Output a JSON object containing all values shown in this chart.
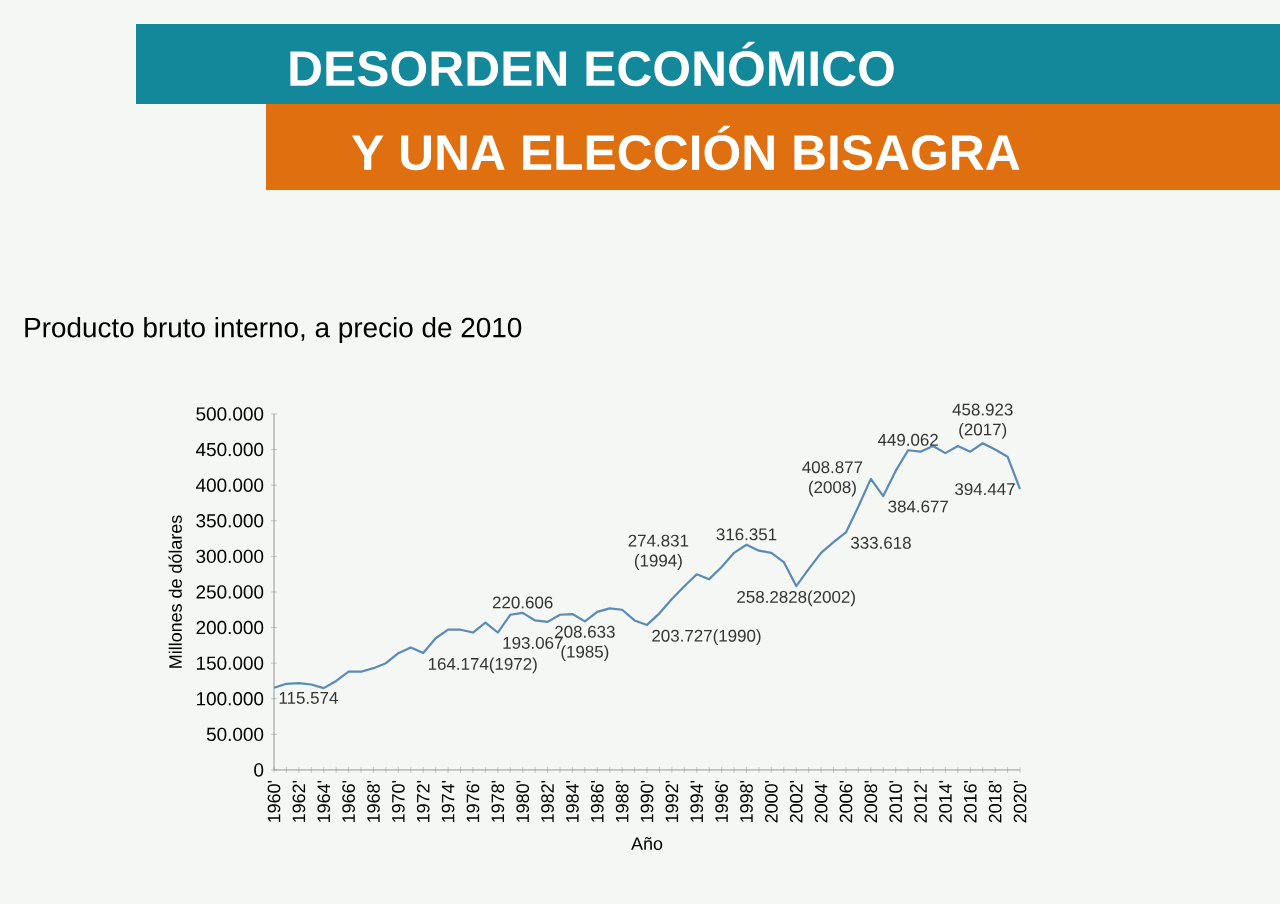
{
  "chart_data": {
    "type": "line",
    "title": "DESORDEN ECONÓMICO",
    "subtitle": "Y UNA ELECCIÓN BISAGRA",
    "xlabel": "Año",
    "ylabel": "Millones de dólares",
    "color": "#5a8ab5",
    "x": [
      1960,
      1961,
      1962,
      1963,
      1964,
      1965,
      1966,
      1967,
      1968,
      1969,
      1970,
      1971,
      1972,
      1973,
      1974,
      1975,
      1976,
      1977,
      1978,
      1979,
      1980,
      1981,
      1982,
      1983,
      1984,
      1985,
      1986,
      1987,
      1988,
      1989,
      1990,
      1991,
      1992,
      1993,
      1994,
      1995,
      1996,
      1997,
      1998,
      1999,
      2000,
      2001,
      2002,
      2003,
      2004,
      2005,
      2006,
      2007,
      2008,
      2009,
      2010,
      2011,
      2012,
      2013,
      2014,
      2015,
      2016,
      2017,
      2018,
      2019,
      2020
    ],
    "values": [
      115574,
      121000,
      122000,
      120000,
      115000,
      125000,
      138000,
      138000,
      143000,
      150000,
      164000,
      172000,
      164174,
      185000,
      197000,
      197000,
      193000,
      207000,
      193067,
      218000,
      220606,
      210000,
      208000,
      218000,
      219000,
      208633,
      222000,
      227000,
      225000,
      210000,
      203727,
      220000,
      240000,
      258000,
      274831,
      268000,
      285000,
      305000,
      316351,
      308000,
      305000,
      292000,
      258283,
      282000,
      305000,
      320000,
      333618,
      370000,
      408877,
      384677,
      420000,
      449062,
      447000,
      455000,
      445000,
      455000,
      447000,
      458923,
      450000,
      440000,
      394447
    ],
    "xlim": [
      1960,
      2020
    ],
    "ylim": [
      0,
      500000
    ],
    "xticks": [
      {
        "value": 1960,
        "label": "1960'"
      },
      {
        "value": 1961,
        "label": null
      },
      {
        "value": 1962,
        "label": "1962'"
      },
      {
        "value": 1963,
        "label": null
      },
      {
        "value": 1964,
        "label": "1964'"
      },
      {
        "value": 1965,
        "label": null
      },
      {
        "value": 1966,
        "label": "1966'"
      },
      {
        "value": 1967,
        "label": null
      },
      {
        "value": 1968,
        "label": "1968'"
      },
      {
        "value": 1969,
        "label": null
      },
      {
        "value": 1970,
        "label": "1970'"
      },
      {
        "value": 1971,
        "label": null
      },
      {
        "value": 1972,
        "label": "1972'"
      },
      {
        "value": 1973,
        "label": null
      },
      {
        "value": 1974,
        "label": "1974'"
      },
      {
        "value": 1975,
        "label": null
      },
      {
        "value": 1976,
        "label": "1976'"
      },
      {
        "value": 1977,
        "label": null
      },
      {
        "value": 1978,
        "label": "1978'"
      },
      {
        "value": 1979,
        "label": null
      },
      {
        "value": 1980,
        "label": "1980'"
      },
      {
        "value": 1981,
        "label": null
      },
      {
        "value": 1982,
        "label": "1982'"
      },
      {
        "value": 1983,
        "label": null
      },
      {
        "value": 1984,
        "label": "1984'"
      },
      {
        "value": 1985,
        "label": null
      },
      {
        "value": 1986,
        "label": "1986'"
      },
      {
        "value": 1987,
        "label": null
      },
      {
        "value": 1988,
        "label": "1988'"
      },
      {
        "value": 1989,
        "label": null
      },
      {
        "value": 1990,
        "label": "1990'"
      },
      {
        "value": 1991,
        "label": null
      },
      {
        "value": 1992,
        "label": "1992'"
      },
      {
        "value": 1993,
        "label": null
      },
      {
        "value": 1994,
        "label": "1994'"
      },
      {
        "value": 1995,
        "label": null
      },
      {
        "value": 1996,
        "label": "1996'"
      },
      {
        "value": 1997,
        "label": null
      },
      {
        "value": 1998,
        "label": "1998'"
      },
      {
        "value": 1999,
        "label": null
      },
      {
        "value": 2000,
        "label": "2000'"
      },
      {
        "value": 2001,
        "label": null
      },
      {
        "value": 2002,
        "label": "2002'"
      },
      {
        "value": 2003,
        "label": null
      },
      {
        "value": 2004,
        "label": "2004'"
      },
      {
        "value": 2005,
        "label": null
      },
      {
        "value": 2006,
        "label": "2006'"
      },
      {
        "value": 2007,
        "label": null
      },
      {
        "value": 2008,
        "label": "2008'"
      },
      {
        "value": 2009,
        "label": null
      },
      {
        "value": 2010,
        "label": "2010'"
      },
      {
        "value": 2011,
        "label": null
      },
      {
        "value": 2012,
        "label": "2012'"
      },
      {
        "value": 2013,
        "label": null
      },
      {
        "value": 2014,
        "label": "2014'"
      },
      {
        "value": 2015,
        "label": null
      },
      {
        "value": 2016,
        "label": "2016'"
      },
      {
        "value": 2017,
        "label": null
      },
      {
        "value": 2018,
        "label": "2018'"
      },
      {
        "value": 2019,
        "label": null
      },
      {
        "value": 2020,
        "label": "2020'"
      }
    ],
    "yticks": [
      0,
      {
        "value": 50000,
        "label": "50.000"
      },
      {
        "value": 100000,
        "label": "100.000"
      },
      {
        "value": 150000,
        "label": "150.000"
      },
      {
        "value": 200000,
        "label": "200.000"
      },
      {
        "value": 250000,
        "label": "250.000"
      },
      {
        "value": 300000,
        "label": "300.000"
      },
      {
        "value": 350000,
        "label": "350.000"
      },
      {
        "value": 400000,
        "label": "400.000"
      },
      {
        "value": 450000,
        "label": "450.000"
      },
      {
        "value": 500000,
        "label": "500.000"
      }
    ],
    "annotations": [
      "Producto bruto interno, a precio de 2010",
      {
        "text": "115.574",
        "x": 1960,
        "y": 115574
      },
      {
        "text": "164.174(1972)",
        "x": 1972,
        "y": 164174
      },
      {
        "text": "193.067",
        "x": 1978,
        "y": 193067
      },
      {
        "text": "220.606",
        "x": 1980,
        "y": 220606
      },
      {
        "text": "208.633 (1985)",
        "x": 1985,
        "y": 208633
      },
      {
        "text": "203.727(1990)",
        "x": 1990,
        "y": 203727
      },
      {
        "text": "274.831 (1994)",
        "x": 1994,
        "y": 274831
      },
      {
        "text": "316.351",
        "x": 1998,
        "y": 316351
      },
      {
        "text": "258.2828(2002)",
        "x": 2002,
        "y": 258283
      },
      {
        "text": "408.877 (2008)",
        "x": 2008,
        "y": 408877
      },
      {
        "text": "333.618",
        "x": 2006,
        "y": 333618
      },
      {
        "text": "384.677",
        "x": 2009,
        "y": 384677
      },
      {
        "text": "449.062",
        "x": 2011,
        "y": 449062
      },
      {
        "text": "458.923 (2017)",
        "x": 2017,
        "y": 458923
      },
      {
        "text": "394.447",
        "x": 2020,
        "y": 394447
      }
    ]
  }
}
